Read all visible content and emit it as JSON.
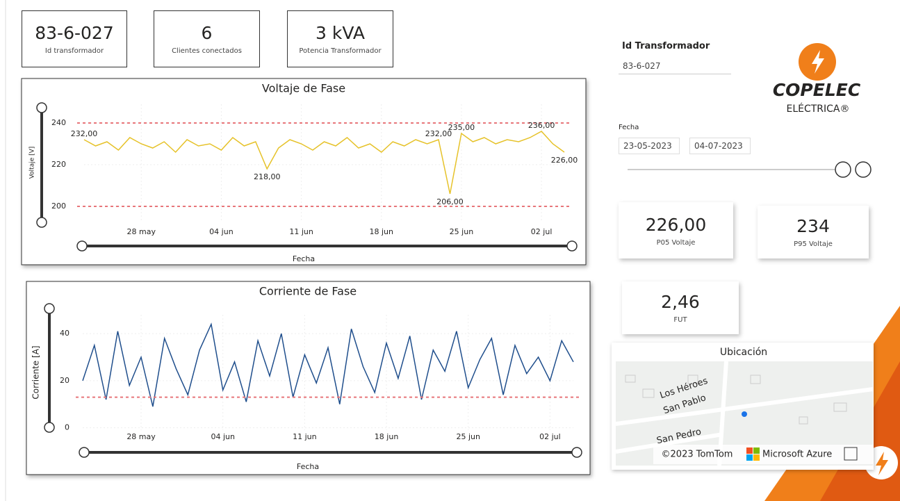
{
  "cards": [
    {
      "value": "83-6-027",
      "label": "Id transformador"
    },
    {
      "value": "6",
      "label": "Clientes conectados"
    },
    {
      "value": "3 kVA",
      "label": "Potencia Transformador"
    }
  ],
  "filters": {
    "transformer_label": "Id Transformador",
    "transformer_value": "83-6-027",
    "date_label": "Fecha",
    "date_start": "23-05-2023",
    "date_end": "04-07-2023"
  },
  "kpis": [
    {
      "value": "226,00",
      "label": "P05 Voltaje"
    },
    {
      "value": "234",
      "label": "P95 Voltaje"
    },
    {
      "value": "2,46",
      "label": "FUT"
    }
  ],
  "logo": {
    "name": "COPELEC",
    "sub": "ELÉCTRICA®"
  },
  "map": {
    "title": "Ubicación",
    "streets": [
      "Los Héroes",
      "San Pablo",
      "San Pedro"
    ],
    "copyright": "©2023 TomTom",
    "provider": "Microsoft Azure"
  },
  "chart_data": [
    {
      "type": "line",
      "title": "Voltaje de Fase",
      "x_label": "Fecha",
      "y_label": "Voltaje [V]",
      "color": "#e6c229",
      "x": [
        "2023-05-23",
        "2023-05-24",
        "2023-05-25",
        "2023-05-26",
        "2023-05-27",
        "2023-05-28",
        "2023-05-29",
        "2023-05-30",
        "2023-05-31",
        "2023-06-01",
        "2023-06-02",
        "2023-06-03",
        "2023-06-04",
        "2023-06-05",
        "2023-06-06",
        "2023-06-07",
        "2023-06-08",
        "2023-06-09",
        "2023-06-10",
        "2023-06-11",
        "2023-06-12",
        "2023-06-13",
        "2023-06-14",
        "2023-06-15",
        "2023-06-16",
        "2023-06-17",
        "2023-06-18",
        "2023-06-19",
        "2023-06-20",
        "2023-06-21",
        "2023-06-22",
        "2023-06-23",
        "2023-06-24",
        "2023-06-25",
        "2023-06-26",
        "2023-06-27",
        "2023-06-28",
        "2023-06-29",
        "2023-06-30",
        "2023-07-01",
        "2023-07-02",
        "2023-07-03",
        "2023-07-04"
      ],
      "values": [
        232,
        229,
        231,
        227,
        233,
        230,
        228,
        231,
        226,
        232,
        229,
        230,
        227,
        233,
        229,
        231,
        218,
        228,
        232,
        230,
        227,
        231,
        229,
        233,
        228,
        230,
        226,
        231,
        229,
        232,
        230,
        232,
        206,
        235,
        231,
        233,
        230,
        232,
        231,
        233,
        236,
        230,
        226
      ],
      "annotations": [
        {
          "x": "2023-05-23",
          "value": 232,
          "label": "232,00"
        },
        {
          "x": "2023-06-08",
          "value": 218,
          "label": "218,00"
        },
        {
          "x": "2023-06-23",
          "value": 232,
          "label": "232,00"
        },
        {
          "x": "2023-06-24",
          "value": 206,
          "label": "206,00"
        },
        {
          "x": "2023-06-25",
          "value": 235,
          "label": "235,00"
        },
        {
          "x": "2023-07-02",
          "value": 236,
          "label": "236,00"
        },
        {
          "x": "2023-07-04",
          "value": 226,
          "label": "226,00"
        }
      ],
      "ref_lines": [
        240,
        200
      ],
      "ref_color": "#e8767a",
      "xlim": [
        "2023-05-23",
        "2023-07-04"
      ],
      "xticks": [
        {
          "value": "2023-05-28",
          "label": "28 may"
        },
        {
          "value": "2023-06-04",
          "label": "04 jun"
        },
        {
          "value": "2023-06-11",
          "label": "11 jun"
        },
        {
          "value": "2023-06-18",
          "label": "18 jun"
        },
        {
          "value": "2023-06-25",
          "label": "25 jun"
        },
        {
          "value": "2023-07-02",
          "label": "02 jul"
        }
      ],
      "ylim": [
        193,
        249
      ],
      "yticks": [
        200,
        220,
        240
      ],
      "grid": true
    },
    {
      "type": "line",
      "title": "Corriente de Fase",
      "x_label": "Fecha",
      "y_label": "Corriente [A]",
      "color": "#1f4e8c",
      "x": [
        "2023-05-23",
        "2023-05-24",
        "2023-05-25",
        "2023-05-26",
        "2023-05-27",
        "2023-05-28",
        "2023-05-29",
        "2023-05-30",
        "2023-05-31",
        "2023-06-01",
        "2023-06-02",
        "2023-06-03",
        "2023-06-04",
        "2023-06-05",
        "2023-06-06",
        "2023-06-07",
        "2023-06-08",
        "2023-06-09",
        "2023-06-10",
        "2023-06-11",
        "2023-06-12",
        "2023-06-13",
        "2023-06-14",
        "2023-06-15",
        "2023-06-16",
        "2023-06-17",
        "2023-06-18",
        "2023-06-19",
        "2023-06-20",
        "2023-06-21",
        "2023-06-22",
        "2023-06-23",
        "2023-06-24",
        "2023-06-25",
        "2023-06-26",
        "2023-06-27",
        "2023-06-28",
        "2023-06-29",
        "2023-06-30",
        "2023-07-01",
        "2023-07-02",
        "2023-07-03",
        "2023-07-04"
      ],
      "values": [
        20,
        35,
        12,
        41,
        18,
        30,
        9,
        38,
        25,
        14,
        33,
        44,
        16,
        28,
        11,
        37,
        22,
        40,
        13,
        31,
        19,
        34,
        10,
        42,
        26,
        15,
        36,
        21,
        39,
        12,
        33,
        24,
        41,
        17,
        29,
        38,
        14,
        35,
        23,
        30,
        20,
        37,
        28
      ],
      "annotations": [],
      "ref_lines": [
        13
      ],
      "ref_color": "#e8767a",
      "xlim": [
        "2023-05-23",
        "2023-07-04"
      ],
      "xticks": [
        {
          "value": "2023-05-28",
          "label": "28 may"
        },
        {
          "value": "2023-06-04",
          "label": "04 jun"
        },
        {
          "value": "2023-06-11",
          "label": "11 jun"
        },
        {
          "value": "2023-06-18",
          "label": "18 jun"
        },
        {
          "value": "2023-06-25",
          "label": "25 jun"
        },
        {
          "value": "2023-07-02",
          "label": "02 jul"
        }
      ],
      "ylim": [
        -1,
        48
      ],
      "yticks": [
        0,
        20,
        40
      ],
      "grid": true
    }
  ]
}
